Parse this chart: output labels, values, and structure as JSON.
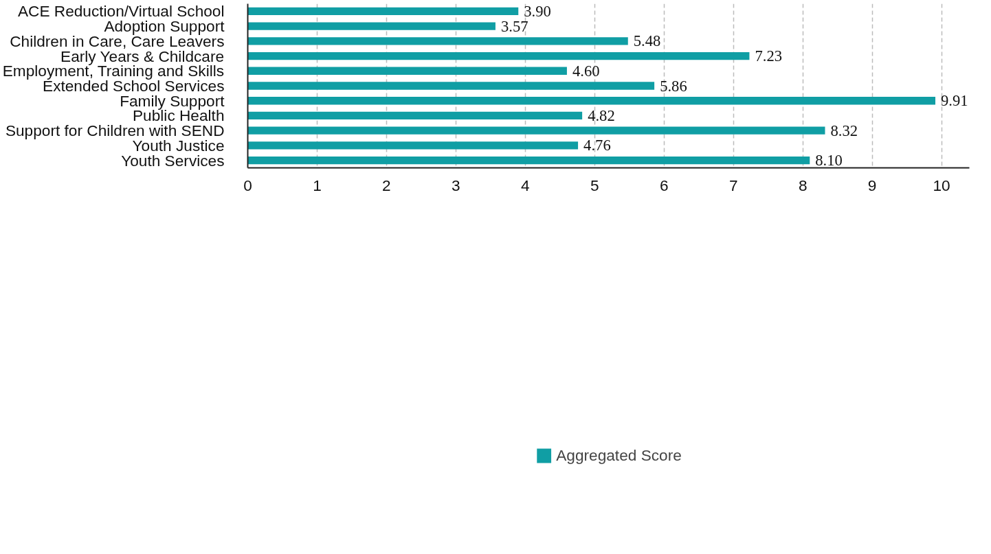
{
  "chart_data": {
    "type": "bar",
    "orientation": "horizontal",
    "categories": [
      "ACE Reduction/Virtual School",
      "Adoption Support",
      "Children in Care, Care Leavers",
      "Early Years & Childcare",
      "Employment, Training and Skills",
      "Extended School Services",
      "Family Support",
      "Public Health",
      "Support for Children with SEND",
      "Youth Justice",
      "Youth Services"
    ],
    "series": [
      {
        "name": "Aggregated Score",
        "color": "#109ea4",
        "values": [
          3.9,
          3.57,
          5.48,
          7.23,
          4.6,
          5.86,
          9.91,
          4.82,
          8.32,
          4.76,
          8.1
        ],
        "value_labels": [
          "3.90",
          "3.57",
          "5.48",
          "7.23",
          "4.60",
          "5.86",
          "9.91",
          "4.82",
          "8.32",
          "4.76",
          "8.10"
        ]
      }
    ],
    "xlim": [
      0,
      10.4
    ],
    "xticks": [
      0,
      1,
      2,
      3,
      4,
      5,
      6,
      7,
      8,
      9,
      10
    ],
    "grid": "x",
    "legend": "bottom"
  }
}
